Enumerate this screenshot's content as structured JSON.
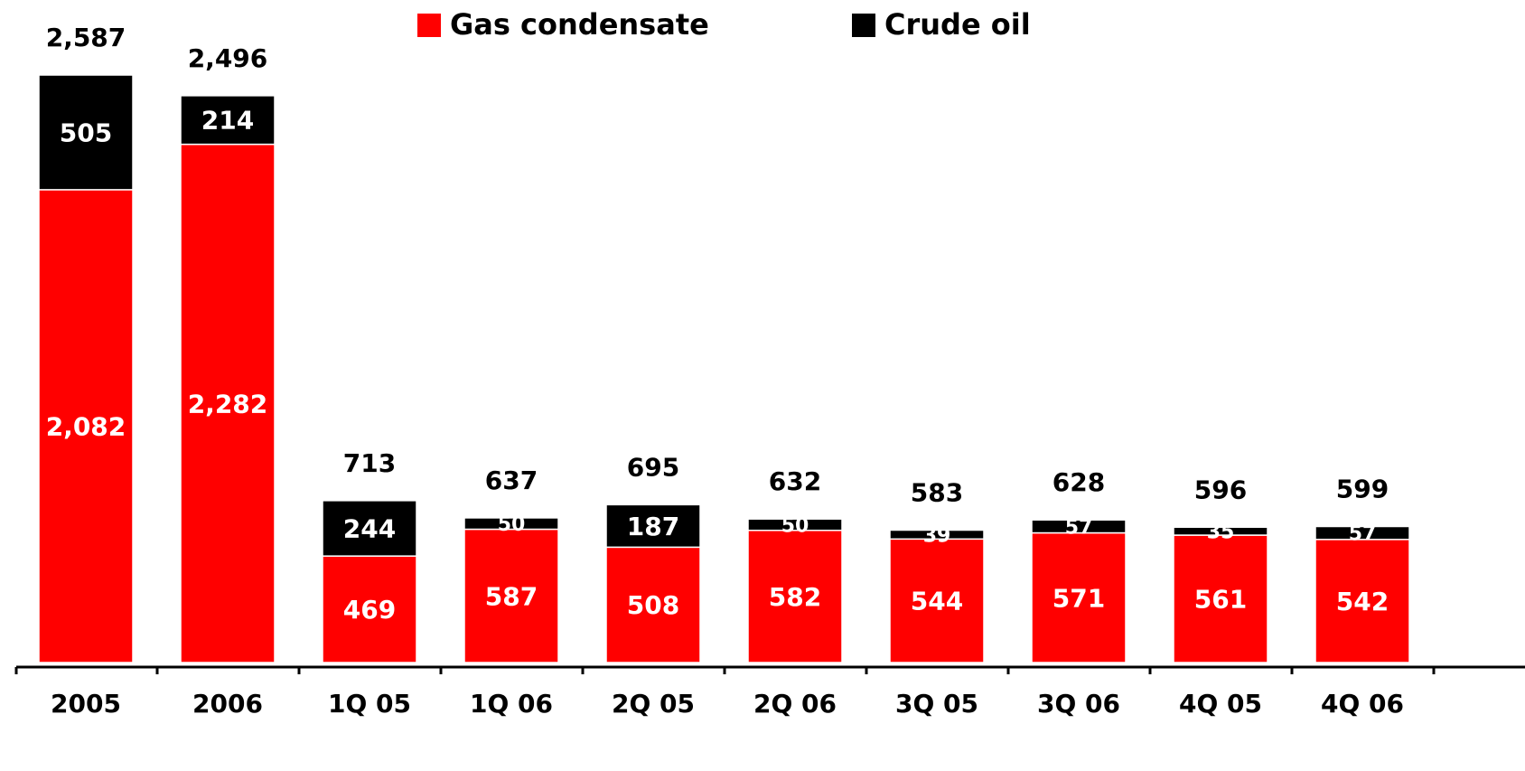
{
  "chart_data": {
    "type": "stacked_bar",
    "categories": [
      "2005",
      "2006",
      "1Q 05",
      "1Q 06",
      "2Q 05",
      "2Q 06",
      "3Q 05",
      "3Q 06",
      "4Q 05",
      "4Q 06"
    ],
    "series": [
      {
        "name": "Gas condensate",
        "color": "#ff0000",
        "label_color": "#ffffff",
        "values": [
          2082,
          2282,
          469,
          587,
          508,
          582,
          544,
          571,
          561,
          542
        ],
        "value_labels": [
          "2,082",
          "2,282",
          "469",
          "587",
          "508",
          "582",
          "544",
          "571",
          "561",
          "542"
        ]
      },
      {
        "name": "Crude oil",
        "color": "#000000",
        "label_color": "#ffffff",
        "values": [
          505,
          214,
          244,
          50,
          187,
          50,
          39,
          57,
          35,
          57
        ]
      }
    ],
    "totals": [
      2587,
      2496,
      713,
      637,
      695,
      632,
      583,
      628,
      596,
      599
    ],
    "total_labels": [
      "2,587",
      "2,496",
      "713",
      "637",
      "695",
      "632",
      "583",
      "628",
      "596",
      "599"
    ],
    "legend": "top"
  }
}
